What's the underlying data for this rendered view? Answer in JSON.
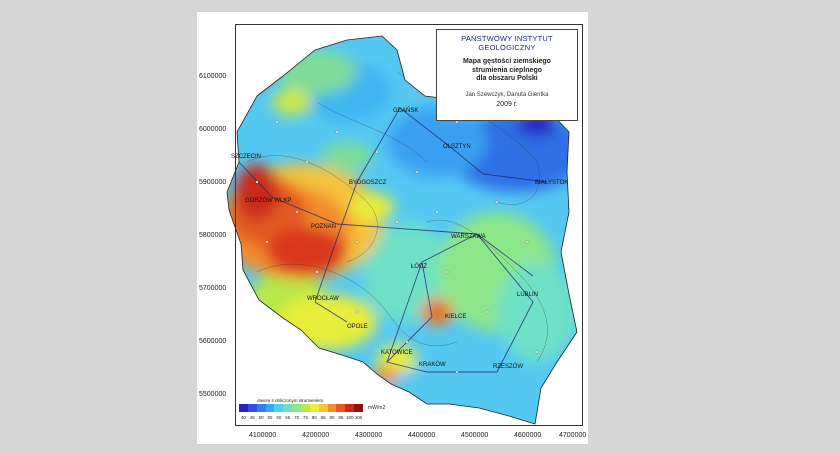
{
  "header": {
    "institution": "PAŃSTWOWY INSTYTUT GEOLOGICZNY",
    "title_lines": [
      "Mapa gęstości ziemskiego",
      "strumienia cieplnego",
      "dla obszaru Polski"
    ],
    "authors": "Jan Szewczyk, Danuta Gientka",
    "year": "2009 r."
  },
  "axes": {
    "y_ticks": [
      "6100000",
      "6000000",
      "5900000",
      "5800000",
      "5700000",
      "5600000",
      "5500000"
    ],
    "x_ticks": [
      "4100000",
      "4200000",
      "4300000",
      "4400000",
      "4500000",
      "4600000",
      "4700000"
    ]
  },
  "legend": {
    "title": "otwory z obliczonym strumieniem",
    "values": [
      "40",
      "45",
      "50",
      "55",
      "60",
      "65",
      "70",
      "75",
      "80",
      "85",
      "90",
      "95",
      "100",
      "105"
    ],
    "unit": "mW/m2",
    "colors": [
      "#2b1fbf",
      "#2f4fe0",
      "#2f7df0",
      "#35a8f5",
      "#4fd0f2",
      "#6fe0c8",
      "#8ce68a",
      "#b5e84a",
      "#e8ee3a",
      "#f5c23a",
      "#f28c2e",
      "#e45824",
      "#c92a1c",
      "#8e1410"
    ]
  },
  "cities": [
    {
      "name": "GDAŃSK"
    },
    {
      "name": "OLSZTYN"
    },
    {
      "name": "SZCZECIN"
    },
    {
      "name": "BYDGOSZCZ"
    },
    {
      "name": "BIAŁYSTOK"
    },
    {
      "name": "GORZÓW WLKP."
    },
    {
      "name": "POZNAŃ"
    },
    {
      "name": "WARSZAWA"
    },
    {
      "name": "ŁÓDŹ"
    },
    {
      "name": "LUBLIN"
    },
    {
      "name": "WROCŁAW"
    },
    {
      "name": "KIELCE"
    },
    {
      "name": "OPOLE"
    },
    {
      "name": "KATOWICE"
    },
    {
      "name": "KRAKÓW"
    },
    {
      "name": "RZESZÓW"
    }
  ]
}
